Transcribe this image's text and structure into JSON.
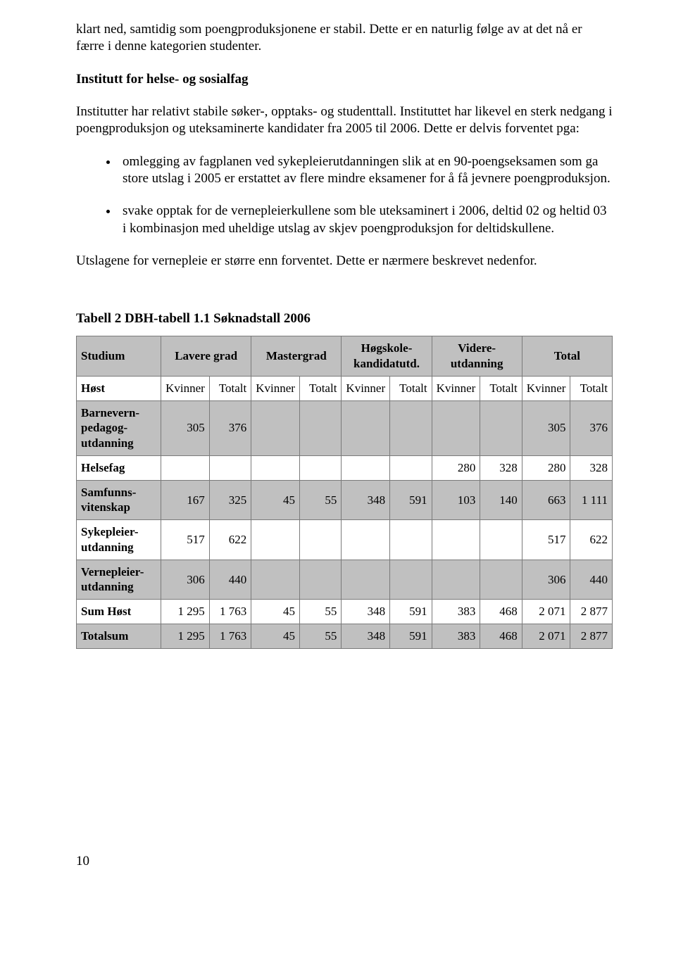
{
  "intro_para": "klart ned, samtidig som poengproduksjonene er stabil. Dette er en naturlig følge av at det nå er færre i denne kategorien studenter.",
  "heading1": "Institutt for helse- og sosialfag",
  "para2": "Institutter har relativt stabile søker-, opptaks- og studenttall. Instituttet har likevel en sterk nedgang i poengproduksjon og uteksaminerte kandidater fra 2005 til 2006. Dette er delvis forventet pga:",
  "bullets": [
    "omlegging av fagplanen ved sykepleierutdanningen slik at en 90-poengseksamen som ga store utslag i 2005 er erstattet av flere mindre eksamener for å få jevnere poengproduksjon.",
    "svake opptak for de vernepleierkullene som ble uteksaminert i 2006, deltid 02 og heltid 03 i kombinasjon med uheldige utslag av skjev poengproduksjon for deltidskullene."
  ],
  "para3": "Utslagene for vernepleie er større enn forventet. Dette er nærmere beskrevet nedenfor.",
  "table_title": "Tabell 2 DBH-tabell 1.1 Søknadstall 2006",
  "table": {
    "type": "table",
    "background_color": "#ffffff",
    "border_color": "#7a7a7a",
    "header_bg": "#c0c0c0",
    "shaded_row_bg": "#c0c0c0",
    "font_size": 17,
    "group_headers": {
      "studium": "Studium",
      "lavere": "Lavere grad",
      "master": "Mastergrad",
      "hogsk": "Høgskole-kandidatutd.",
      "videre": "Videre-utdanning",
      "total": "Total"
    },
    "sub_headers": {
      "host": "Høst",
      "kvinner": "Kvinner",
      "totalt": "Totalt"
    },
    "rows": [
      {
        "label": "Barnevern-pedagog-utdanning",
        "shaded": true,
        "cells": [
          "305",
          "376",
          "",
          "",
          "",
          "",
          "",
          "",
          "305",
          "376"
        ]
      },
      {
        "label": "Helsefag",
        "shaded": false,
        "cells": [
          "",
          "",
          "",
          "",
          "",
          "",
          "280",
          "328",
          "280",
          "328"
        ]
      },
      {
        "label": "Samfunns-vitenskap",
        "shaded": true,
        "cells": [
          "167",
          "325",
          "45",
          "55",
          "348",
          "591",
          "103",
          "140",
          "663",
          "1 111"
        ]
      },
      {
        "label": "Sykepleier-utdanning",
        "shaded": false,
        "cells": [
          "517",
          "622",
          "",
          "",
          "",
          "",
          "",
          "",
          "517",
          "622"
        ]
      },
      {
        "label": "Vernepleier-utdanning",
        "shaded": true,
        "cells": [
          "306",
          "440",
          "",
          "",
          "",
          "",
          "",
          "",
          "306",
          "440"
        ]
      },
      {
        "label": "Sum Høst",
        "shaded": false,
        "cells": [
          "1 295",
          "1 763",
          "45",
          "55",
          "348",
          "591",
          "383",
          "468",
          "2 071",
          "2 877"
        ]
      },
      {
        "label": "Totalsum",
        "shaded": true,
        "cells": [
          "1 295",
          "1 763",
          "45",
          "55",
          "348",
          "591",
          "383",
          "468",
          "2 071",
          "2 877"
        ]
      }
    ]
  },
  "page_number": "10"
}
